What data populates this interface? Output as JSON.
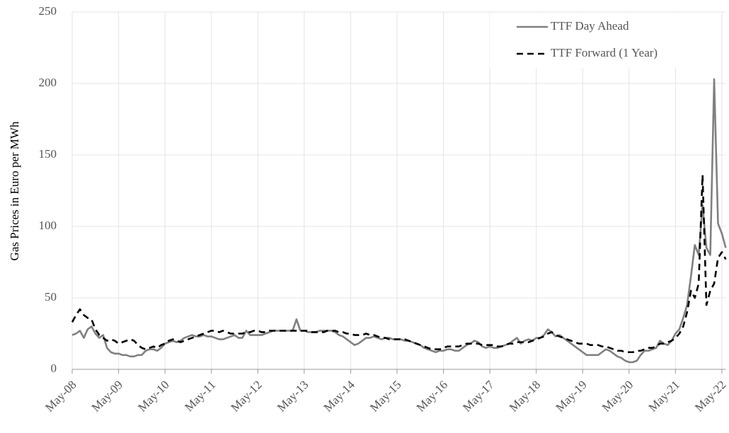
{
  "chart_data": {
    "type": "line",
    "y_label": "Gas Prices in Euro per MWh",
    "categories": [
      "May-08",
      null,
      null,
      null,
      null,
      null,
      null,
      null,
      null,
      null,
      null,
      null,
      "May-09",
      null,
      null,
      null,
      null,
      null,
      null,
      null,
      null,
      null,
      null,
      null,
      "May-10",
      null,
      null,
      null,
      null,
      null,
      null,
      null,
      null,
      null,
      null,
      null,
      "May-11",
      null,
      null,
      null,
      null,
      null,
      null,
      null,
      null,
      null,
      null,
      null,
      "May-12",
      null,
      null,
      null,
      null,
      null,
      null,
      null,
      null,
      null,
      null,
      null,
      "May-13",
      null,
      null,
      null,
      null,
      null,
      null,
      null,
      null,
      null,
      null,
      null,
      "May-14",
      null,
      null,
      null,
      null,
      null,
      null,
      null,
      null,
      null,
      null,
      null,
      "May-15",
      null,
      null,
      null,
      null,
      null,
      null,
      null,
      null,
      null,
      null,
      null,
      "May-16",
      null,
      null,
      null,
      null,
      null,
      null,
      null,
      null,
      null,
      null,
      null,
      "May-17",
      null,
      null,
      null,
      null,
      null,
      null,
      null,
      null,
      null,
      null,
      null,
      "May-18",
      null,
      null,
      null,
      null,
      null,
      null,
      null,
      null,
      null,
      null,
      null,
      "May-19",
      null,
      null,
      null,
      null,
      null,
      null,
      null,
      null,
      null,
      null,
      null,
      "May-20",
      null,
      null,
      null,
      null,
      null,
      null,
      null,
      null,
      null,
      null,
      null,
      "May-21",
      null,
      null,
      null,
      null,
      null,
      null,
      null,
      null,
      null,
      null,
      null,
      "May-22",
      null
    ],
    "series": [
      {
        "name": "TTF Day Ahead",
        "color": "#808080",
        "linestyle": "solid",
        "values": [
          24,
          25,
          27,
          22,
          28,
          30,
          25,
          22,
          24,
          15,
          12,
          11,
          11,
          10,
          10,
          9,
          9,
          10,
          10,
          13,
          14,
          14,
          13,
          15,
          18,
          19,
          20,
          19,
          20,
          22,
          23,
          24,
          23,
          23,
          24,
          23,
          23,
          22,
          21,
          21,
          22,
          23,
          24,
          22,
          22,
          27,
          24,
          24,
          24,
          24,
          25,
          26,
          27,
          27,
          27,
          27,
          27,
          27,
          35,
          27,
          27,
          26,
          26,
          26,
          27,
          27,
          27,
          27,
          26,
          24,
          23,
          21,
          19,
          17,
          18,
          20,
          22,
          22,
          23,
          22,
          21,
          22,
          22,
          21,
          21,
          21,
          20,
          20,
          19,
          18,
          17,
          15,
          14,
          13,
          12,
          13,
          13,
          14,
          14,
          13,
          13,
          15,
          17,
          18,
          20,
          19,
          16,
          15,
          16,
          15,
          15,
          16,
          17,
          18,
          20,
          22,
          18,
          20,
          21,
          20,
          22,
          22,
          24,
          28,
          26,
          23,
          24,
          22,
          20,
          18,
          16,
          14,
          12,
          10,
          10,
          10,
          10,
          12,
          14,
          13,
          11,
          9,
          8,
          6,
          5,
          5,
          6,
          10,
          13,
          13,
          14,
          15,
          20,
          18,
          17,
          20,
          25,
          28,
          36,
          45,
          65,
          87,
          80,
          115,
          85,
          80,
          203,
          102,
          95,
          85
        ]
      },
      {
        "name": "TTF Forward (1 Year)",
        "color": "#000000",
        "linestyle": "dashed",
        "values": [
          33,
          38,
          42,
          38,
          36,
          35,
          28,
          24,
          22,
          20,
          21,
          20,
          18,
          19,
          20,
          21,
          20,
          17,
          15,
          14,
          15,
          16,
          15,
          17,
          18,
          20,
          21,
          20,
          19,
          20,
          21,
          22,
          23,
          24,
          25,
          26,
          27,
          27,
          26,
          27,
          26,
          25,
          25,
          25,
          25,
          26,
          26,
          27,
          27,
          26,
          26,
          27,
          27,
          27,
          27,
          27,
          27,
          27,
          27,
          27,
          27,
          27,
          26,
          26,
          26,
          26,
          27,
          27,
          27,
          26,
          26,
          25,
          25,
          24,
          24,
          24,
          25,
          24,
          24,
          23,
          22,
          22,
          21,
          21,
          21,
          21,
          21,
          20,
          19,
          18,
          17,
          16,
          15,
          14,
          14,
          14,
          15,
          16,
          16,
          16,
          16,
          17,
          18,
          18,
          18,
          18,
          17,
          17,
          17,
          17,
          16,
          16,
          17,
          18,
          18,
          19,
          19,
          19,
          19,
          20,
          21,
          22,
          23,
          25,
          26,
          24,
          23,
          22,
          21,
          20,
          19,
          18,
          18,
          18,
          17,
          17,
          17,
          16,
          16,
          15,
          14,
          13,
          13,
          12,
          12,
          12,
          13,
          13,
          14,
          15,
          15,
          16,
          18,
          18,
          19,
          20,
          22,
          25,
          30,
          40,
          55,
          50,
          60,
          136,
          45,
          55,
          60,
          78,
          82,
          77
        ]
      }
    ],
    "ylim": [
      0,
      250
    ],
    "yticks": [
      0,
      50,
      100,
      150,
      200,
      250
    ],
    "grid": true,
    "legend": "upper right"
  }
}
